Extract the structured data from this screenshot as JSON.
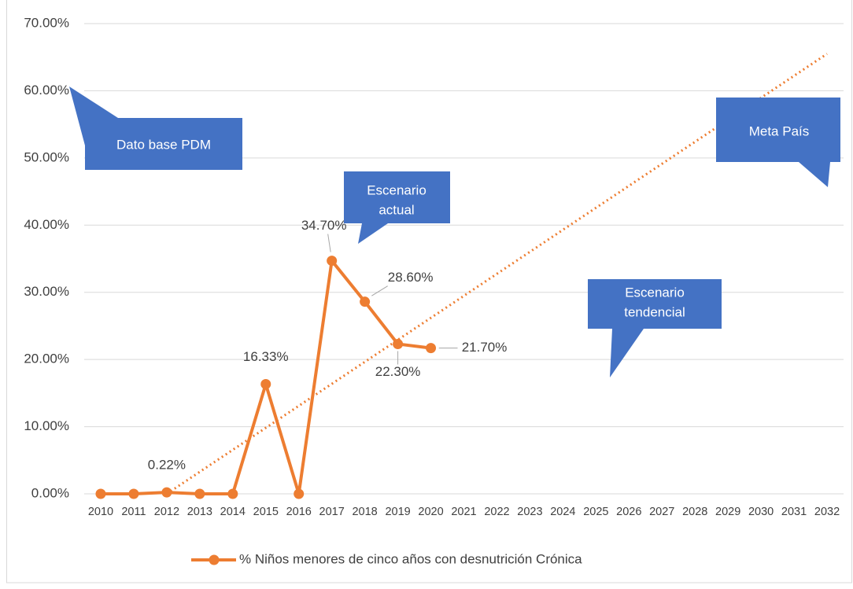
{
  "chart_data": {
    "type": "line",
    "categories": [
      "2010",
      "2011",
      "2012",
      "2013",
      "2014",
      "2015",
      "2016",
      "2017",
      "2018",
      "2019",
      "2020",
      "2021",
      "2022",
      "2023",
      "2024",
      "2025",
      "2026",
      "2027",
      "2028",
      "2029",
      "2030",
      "2031",
      "2032"
    ],
    "series": [
      {
        "name": "% Niños menores de cinco años con desnutrición Crónica",
        "color": "#ed7d31",
        "values": [
          0,
          0,
          0.22,
          0,
          0,
          16.33,
          0,
          34.7,
          28.6,
          22.3,
          21.7,
          null,
          null,
          null,
          null,
          null,
          null,
          null,
          null,
          null,
          null,
          null,
          null
        ],
        "value_labels": [
          null,
          null,
          "0.22%",
          null,
          null,
          "16.33%",
          null,
          "34.70%",
          "28.60%",
          "22.30%",
          "21.70%",
          null,
          null,
          null,
          null,
          null,
          null,
          null,
          null,
          null,
          null,
          null,
          null
        ]
      }
    ],
    "trendline": {
      "color": "#ed7d31",
      "categories": [
        "2012",
        "2032"
      ],
      "values": [
        0,
        65.5
      ]
    },
    "ylim": [
      0,
      70
    ],
    "yticks": [
      {
        "value": 0,
        "label": "0.00%"
      },
      {
        "value": 10,
        "label": "10.00%"
      },
      {
        "value": 20,
        "label": "20.00%"
      },
      {
        "value": 30,
        "label": "30.00%"
      },
      {
        "value": 40,
        "label": "40.00%"
      },
      {
        "value": 50,
        "label": "50.00%"
      },
      {
        "value": 60,
        "label": "60.00%"
      },
      {
        "value": 70,
        "label": "70.00%"
      }
    ],
    "grid": true,
    "legend": "bottom",
    "annotations": [
      {
        "lines": [
          "Dato base PDM"
        ]
      },
      {
        "lines": [
          "Escenario",
          "actual"
        ]
      },
      {
        "lines": [
          "Meta  País"
        ]
      },
      {
        "lines": [
          "Escenario",
          "tendencial"
        ]
      }
    ]
  }
}
